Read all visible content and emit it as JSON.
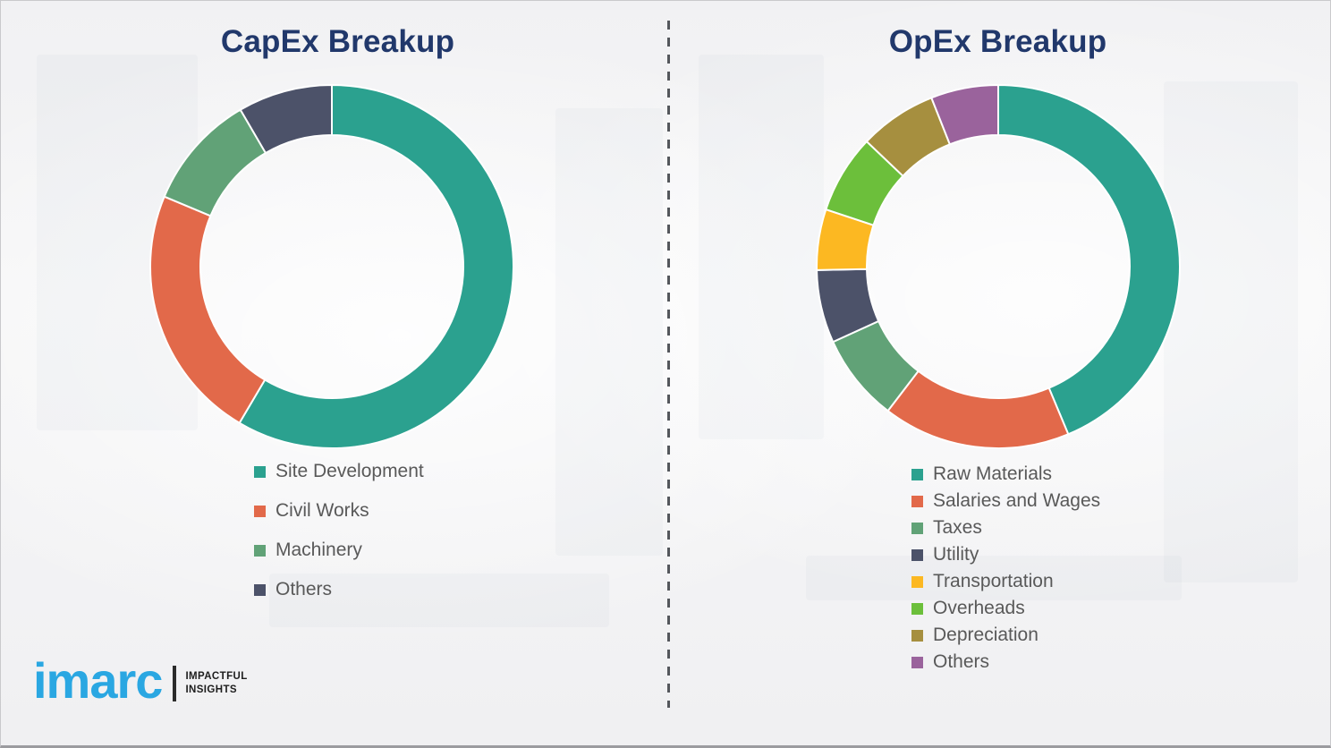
{
  "page": {
    "left_title": "CapEx Breakup",
    "right_title": "OpEx Breakup"
  },
  "style": {
    "title_color": "#21386B",
    "legend_text_color": "#595959",
    "divider_color": "#54575C",
    "segment_gap_color": "#FFFFFF"
  },
  "logo": {
    "brand": "imarc",
    "tagline_line1": "IMPACTFUL",
    "tagline_line2": "INSIGHTS",
    "brand_color": "#2AA7E2"
  },
  "chart_data": [
    {
      "type": "pie",
      "variant": "donut",
      "title": "CapEx Breakup",
      "legend_position": "bottom-left",
      "start_angle_deg": 0,
      "direction": "clockwise",
      "segments": [
        {
          "label": "Site Development",
          "value_pct": 58.5,
          "color": "#2BA18F"
        },
        {
          "label": "Civil Works",
          "value_pct": 22.8,
          "color": "#E2694A"
        },
        {
          "label": "Machinery",
          "value_pct": 10.3,
          "color": "#61A277"
        },
        {
          "label": "Others",
          "value_pct": 8.4,
          "color": "#4C5269"
        }
      ]
    },
    {
      "type": "pie",
      "variant": "donut",
      "title": "OpEx Breakup",
      "legend_position": "bottom-left",
      "start_angle_deg": 0,
      "direction": "clockwise",
      "segments": [
        {
          "label": "Raw Materials",
          "value_pct": 43.7,
          "color": "#2BA18F"
        },
        {
          "label": "Salaries and Wages",
          "value_pct": 16.7,
          "color": "#E2694A"
        },
        {
          "label": "Taxes",
          "value_pct": 7.8,
          "color": "#61A277"
        },
        {
          "label": "Utility",
          "value_pct": 6.5,
          "color": "#4C5269"
        },
        {
          "label": "Transportation",
          "value_pct": 5.4,
          "color": "#FCB822"
        },
        {
          "label": "Overheads",
          "value_pct": 7.0,
          "color": "#6CBF3B"
        },
        {
          "label": "Depreciation",
          "value_pct": 6.9,
          "color": "#A68F3F"
        },
        {
          "label": "Others",
          "value_pct": 6.0,
          "color": "#9A639C"
        }
      ]
    }
  ]
}
